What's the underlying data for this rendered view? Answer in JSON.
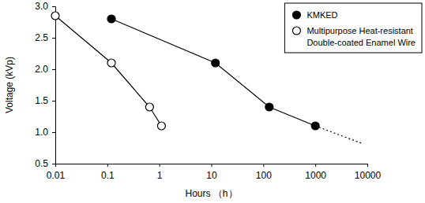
{
  "chart_data": {
    "type": "line",
    "xlabel": "Hours （h）",
    "ylabel": "Voltage (kVp)",
    "log": "x",
    "grid": false,
    "legend": "upper right",
    "xlim": [
      0.01,
      10000
    ],
    "xticks": [
      0.01,
      0.1,
      1,
      10,
      100,
      1000,
      10000
    ],
    "ylim": [
      0.5,
      3.0
    ],
    "yticks": [
      0.5,
      {
        "value": 1,
        "label": "1.0"
      },
      1.5,
      {
        "value": 2,
        "label": "2.0"
      },
      2.5,
      {
        "value": 3,
        "label": "3.0"
      }
    ],
    "series": [
      {
        "name": "KMKED",
        "color": "#000000",
        "marker": "circle",
        "line_style": "solid",
        "x": [
          0.12,
          12,
          130,
          1000
        ],
        "values": [
          2.8,
          2.1,
          1.4,
          1.1
        ]
      },
      {
        "name": "Multipurpose Heat-resistant Double-coated Enamel Wire",
        "color": "#000000",
        "marker": "open-circle",
        "line_style": "solid",
        "x": [
          0.01,
          0.12,
          0.65,
          1.1
        ],
        "values": [
          2.85,
          2.1,
          1.4,
          1.1
        ]
      },
      {
        "color": "#000000",
        "marker": "none",
        "line_style": "dotted",
        "x": [
          1000,
          8000
        ],
        "values": [
          1.1,
          0.82
        ]
      }
    ]
  }
}
